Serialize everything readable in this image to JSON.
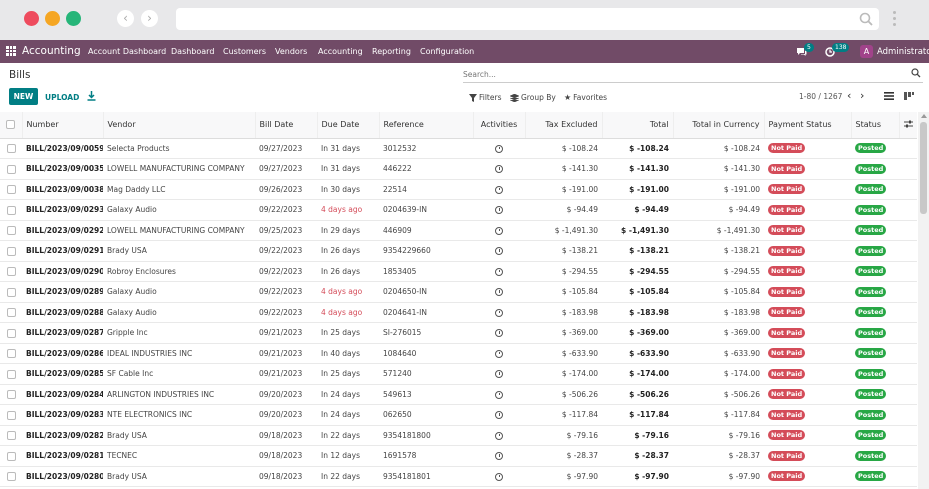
{
  "navbar": {
    "brand": "Accounting",
    "menu": [
      "Account Dashboard",
      "Dashboard",
      "Customers",
      "Vendors",
      "Accounting",
      "Reporting",
      "Configuration"
    ],
    "chat_count": "5",
    "activity_count": "138",
    "user_initial": "A",
    "user_name": "Administrator"
  },
  "control": {
    "title": "Bills",
    "search_placeholder": "Search...",
    "new_label": "NEW",
    "upload_label": "UPLOAD",
    "filters_label": "Filters",
    "groupby_label": "Group By",
    "favorites_label": "Favorites",
    "pager": "1-80 / 1267"
  },
  "colors": {
    "brand": "#714b67",
    "accent": "#017e84",
    "not_paid": "#d44c59",
    "posted": "#28a745"
  },
  "columns": [
    "Number",
    "Vendor",
    "Bill Date",
    "Due Date",
    "Reference",
    "Activities",
    "Tax Excluded",
    "Total",
    "Total in Currency",
    "Payment Status",
    "Status"
  ],
  "rows": [
    {
      "number": "BILL/2023/09/0059",
      "vendor": "Selecta Products",
      "bill_date": "09/27/2023",
      "due": "In 31 days",
      "overdue": false,
      "ref": "3012532",
      "tax_excl": "$ -108.24",
      "total": "$ -108.24",
      "total_cur": "$ -108.24",
      "payment": "Not Paid",
      "status": "Posted"
    },
    {
      "number": "BILL/2023/09/0035",
      "vendor": "LOWELL MANUFACTURING COMPANY",
      "bill_date": "09/27/2023",
      "due": "In 31 days",
      "overdue": false,
      "ref": "446222",
      "tax_excl": "$ -141.30",
      "total": "$ -141.30",
      "total_cur": "$ -141.30",
      "payment": "Not Paid",
      "status": "Posted"
    },
    {
      "number": "BILL/2023/09/0038",
      "vendor": "Mag Daddy LLC",
      "bill_date": "09/26/2023",
      "due": "In 30 days",
      "overdue": false,
      "ref": "22514",
      "tax_excl": "$ -191.00",
      "total": "$ -191.00",
      "total_cur": "$ -191.00",
      "payment": "Not Paid",
      "status": "Posted"
    },
    {
      "number": "BILL/2023/09/0293",
      "vendor": "Galaxy Audio",
      "bill_date": "09/22/2023",
      "due": "4 days ago",
      "overdue": true,
      "ref": "0204639-IN",
      "tax_excl": "$ -94.49",
      "total": "$ -94.49",
      "total_cur": "$ -94.49",
      "payment": "Not Paid",
      "status": "Posted"
    },
    {
      "number": "BILL/2023/09/0292",
      "vendor": "LOWELL MANUFACTURING COMPANY",
      "bill_date": "09/25/2023",
      "due": "In 29 days",
      "overdue": false,
      "ref": "446909",
      "tax_excl": "$ -1,491.30",
      "total": "$ -1,491.30",
      "total_cur": "$ -1,491.30",
      "payment": "Not Paid",
      "status": "Posted"
    },
    {
      "number": "BILL/2023/09/0291",
      "vendor": "Brady USA",
      "bill_date": "09/22/2023",
      "due": "In 26 days",
      "overdue": false,
      "ref": "9354229660",
      "tax_excl": "$ -138.21",
      "total": "$ -138.21",
      "total_cur": "$ -138.21",
      "payment": "Not Paid",
      "status": "Posted"
    },
    {
      "number": "BILL/2023/09/0290",
      "vendor": "Robroy Enclosures",
      "bill_date": "09/22/2023",
      "due": "In 26 days",
      "overdue": false,
      "ref": "1853405",
      "tax_excl": "$ -294.55",
      "total": "$ -294.55",
      "total_cur": "$ -294.55",
      "payment": "Not Paid",
      "status": "Posted"
    },
    {
      "number": "BILL/2023/09/0289",
      "vendor": "Galaxy Audio",
      "bill_date": "09/22/2023",
      "due": "4 days ago",
      "overdue": true,
      "ref": "0204650-IN",
      "tax_excl": "$ -105.84",
      "total": "$ -105.84",
      "total_cur": "$ -105.84",
      "payment": "Not Paid",
      "status": "Posted"
    },
    {
      "number": "BILL/2023/09/0288",
      "vendor": "Galaxy Audio",
      "bill_date": "09/22/2023",
      "due": "4 days ago",
      "overdue": true,
      "ref": "0204641-IN",
      "tax_excl": "$ -183.98",
      "total": "$ -183.98",
      "total_cur": "$ -183.98",
      "payment": "Not Paid",
      "status": "Posted"
    },
    {
      "number": "BILL/2023/09/0287",
      "vendor": "Gripple Inc",
      "bill_date": "09/21/2023",
      "due": "In 25 days",
      "overdue": false,
      "ref": "SI-276015",
      "tax_excl": "$ -369.00",
      "total": "$ -369.00",
      "total_cur": "$ -369.00",
      "payment": "Not Paid",
      "status": "Posted"
    },
    {
      "number": "BILL/2023/09/0286",
      "vendor": "IDEAL INDUSTRIES INC",
      "bill_date": "09/21/2023",
      "due": "In 40 days",
      "overdue": false,
      "ref": "1084640",
      "tax_excl": "$ -633.90",
      "total": "$ -633.90",
      "total_cur": "$ -633.90",
      "payment": "Not Paid",
      "status": "Posted"
    },
    {
      "number": "BILL/2023/09/0285",
      "vendor": "SF Cable Inc",
      "bill_date": "09/21/2023",
      "due": "In 25 days",
      "overdue": false,
      "ref": "571240",
      "tax_excl": "$ -174.00",
      "total": "$ -174.00",
      "total_cur": "$ -174.00",
      "payment": "Not Paid",
      "status": "Posted"
    },
    {
      "number": "BILL/2023/09/0284",
      "vendor": "ARLINGTON INDUSTRIES INC",
      "bill_date": "09/20/2023",
      "due": "In 24 days",
      "overdue": false,
      "ref": "549613",
      "tax_excl": "$ -506.26",
      "total": "$ -506.26",
      "total_cur": "$ -506.26",
      "payment": "Not Paid",
      "status": "Posted"
    },
    {
      "number": "BILL/2023/09/0283",
      "vendor": "NTE ELECTRONICS INC",
      "bill_date": "09/20/2023",
      "due": "In 24 days",
      "overdue": false,
      "ref": "062650",
      "tax_excl": "$ -117.84",
      "total": "$ -117.84",
      "total_cur": "$ -117.84",
      "payment": "Not Paid",
      "status": "Posted"
    },
    {
      "number": "BILL/2023/09/0282",
      "vendor": "Brady USA",
      "bill_date": "09/18/2023",
      "due": "In 22 days",
      "overdue": false,
      "ref": "9354181800",
      "tax_excl": "$ -79.16",
      "total": "$ -79.16",
      "total_cur": "$ -79.16",
      "payment": "Not Paid",
      "status": "Posted"
    },
    {
      "number": "BILL/2023/09/0281",
      "vendor": "TECNEC",
      "bill_date": "09/18/2023",
      "due": "In 12 days",
      "overdue": false,
      "ref": "1691578",
      "tax_excl": "$ -28.37",
      "total": "$ -28.37",
      "total_cur": "$ -28.37",
      "payment": "Not Paid",
      "status": "Posted"
    },
    {
      "number": "BILL/2023/09/0280",
      "vendor": "Brady USA",
      "bill_date": "09/18/2023",
      "due": "In 22 days",
      "overdue": false,
      "ref": "9354181801",
      "tax_excl": "$ -97.90",
      "total": "$ -97.90",
      "total_cur": "$ -97.90",
      "payment": "Not Paid",
      "status": "Posted"
    }
  ]
}
